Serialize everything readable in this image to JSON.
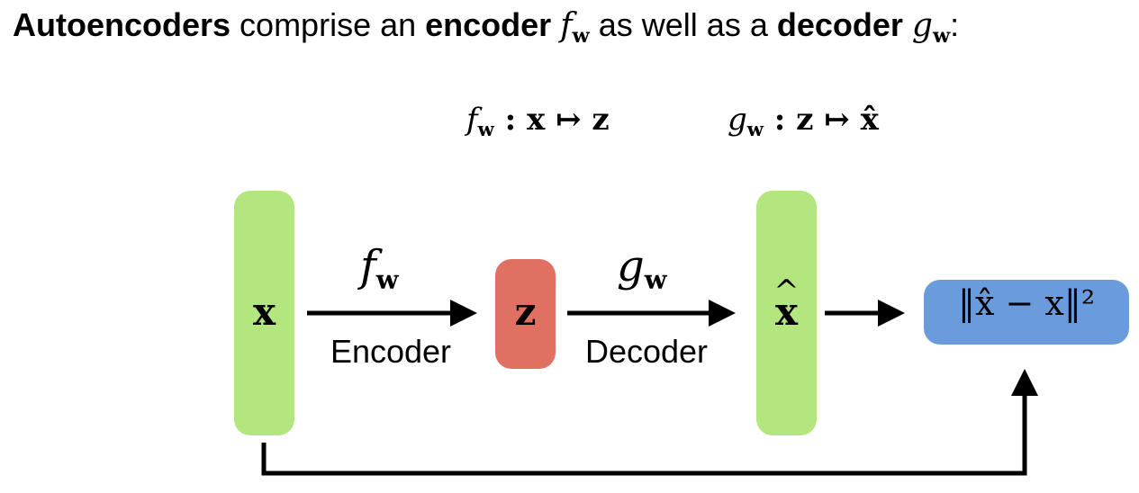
{
  "title": {
    "word1": "Autoencoders",
    "text1": " comprise an ",
    "word2": "encoder",
    "f_sym": "f",
    "sub_w": "w",
    "text2": " as well as a ",
    "word3": "decoder",
    "g_sym": "g",
    "text3": ":"
  },
  "mappings": {
    "encoder_map_prefix": "f",
    "encoder_map_body": " : x ↦ z",
    "decoder_map_prefix": "g",
    "decoder_map_body": " : z ↦ x̂"
  },
  "nodes": {
    "input_label": "x",
    "latent_label": "z",
    "reconstruction_label": "x",
    "loss_label": "‖x̂ − x‖²"
  },
  "arrows": {
    "encoder_symbol": "f",
    "decoder_symbol": "g",
    "subscript": "w",
    "encoder_caption": "Encoder",
    "decoder_caption": "Decoder"
  },
  "colors": {
    "input": "#b3e67f",
    "latent": "#e07062",
    "loss": "#6a9bdc"
  }
}
